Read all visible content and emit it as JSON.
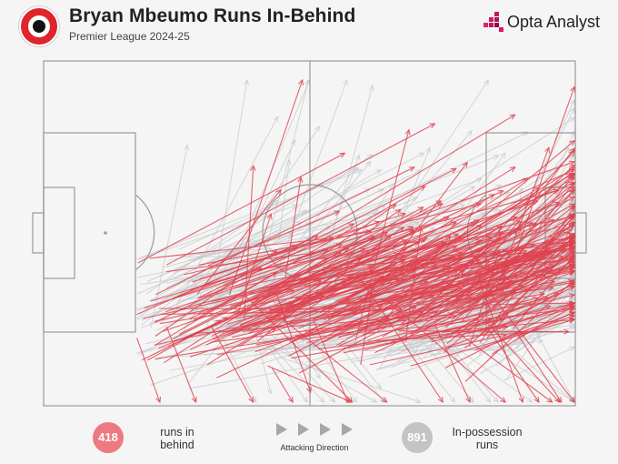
{
  "header": {
    "title": "Bryan Mbeumo Runs In-Behind",
    "subtitle": "Premier League 2024-25",
    "brand": "Opta Analyst"
  },
  "icons": {
    "club_badge": "brentford-crest-icon",
    "brand_logo": "opta-logo-icon",
    "direction": "play-arrow-icon"
  },
  "colors": {
    "runs_in_behind": "#e0424f",
    "in_possession": "#c8cacd",
    "pitch_lines": "#9a9a9a",
    "background": "#f5f5f5"
  },
  "legend": {
    "runs_in_behind": {
      "count": "418",
      "label": "runs in behind"
    },
    "attacking_direction": "Attacking Direction",
    "in_possession": {
      "count": "891",
      "label": "In-possession runs"
    }
  }
}
